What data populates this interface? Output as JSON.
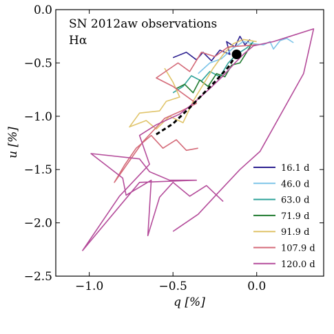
{
  "chart_data": {
    "type": "line",
    "title": "SN 2012aw observations",
    "subtitle": "Hα",
    "xlabel": "q [%]",
    "ylabel": "u [%]",
    "xlim": [
      -1.2,
      0.4
    ],
    "ylim": [
      -2.5,
      0.0
    ],
    "xticks": [
      -1.0,
      -0.5,
      0.0
    ],
    "xtick_labels": [
      "−1.0",
      "−0.5",
      "0.0"
    ],
    "yticks": [
      0.0,
      -0.5,
      -1.0,
      -1.5,
      -2.0,
      -2.5
    ],
    "ytick_labels": [
      "0.0",
      "−0.5",
      "−1.0",
      "−1.5",
      "−2.0",
      "−2.5"
    ],
    "grid": false,
    "legend_position": "lower-right",
    "series": [
      {
        "name": "16.1 d",
        "color": "#2b1f8f",
        "points": [
          [
            -0.5,
            -0.45
          ],
          [
            -0.42,
            -0.4
          ],
          [
            -0.36,
            -0.47
          ],
          [
            -0.32,
            -0.4
          ],
          [
            -0.27,
            -0.48
          ],
          [
            -0.22,
            -0.38
          ],
          [
            -0.16,
            -0.42
          ],
          [
            -0.18,
            -0.3
          ],
          [
            -0.13,
            -0.35
          ],
          [
            -0.1,
            -0.25
          ],
          [
            -0.07,
            -0.33
          ],
          [
            -0.04,
            -0.28
          ]
        ]
      },
      {
        "name": "46.0 d",
        "color": "#7cc4e8",
        "points": [
          [
            -0.35,
            -0.6
          ],
          [
            -0.28,
            -0.5
          ],
          [
            -0.21,
            -0.46
          ],
          [
            -0.14,
            -0.36
          ],
          [
            -0.08,
            -0.3
          ],
          [
            -0.02,
            -0.32
          ],
          [
            0.04,
            -0.33
          ],
          [
            0.08,
            -0.3
          ],
          [
            0.1,
            -0.37
          ],
          [
            0.14,
            -0.29
          ],
          [
            0.18,
            -0.27
          ],
          [
            0.22,
            -0.31
          ]
        ]
      },
      {
        "name": "63.0 d",
        "color": "#2fa39a",
        "points": [
          [
            -0.5,
            -0.78
          ],
          [
            -0.44,
            -0.72
          ],
          [
            -0.39,
            -0.62
          ],
          [
            -0.33,
            -0.67
          ],
          [
            -0.28,
            -0.58
          ],
          [
            -0.22,
            -0.63
          ],
          [
            -0.17,
            -0.5
          ],
          [
            -0.12,
            -0.42
          ],
          [
            -0.06,
            -0.36
          ],
          [
            -0.02,
            -0.3
          ]
        ]
      },
      {
        "name": "71.9 d",
        "color": "#1f7a2f",
        "points": [
          [
            -0.48,
            -0.74
          ],
          [
            -0.43,
            -0.7
          ],
          [
            -0.38,
            -0.78
          ],
          [
            -0.34,
            -0.66
          ],
          [
            -0.29,
            -0.72
          ],
          [
            -0.24,
            -0.6
          ],
          [
            -0.19,
            -0.63
          ],
          [
            -0.15,
            -0.52
          ],
          [
            -0.1,
            -0.5
          ],
          [
            -0.06,
            -0.4
          ],
          [
            -0.03,
            -0.32
          ]
        ]
      },
      {
        "name": "91.9 d",
        "color": "#e0c46a",
        "points": [
          [
            -0.55,
            -0.55
          ],
          [
            -0.5,
            -0.68
          ],
          [
            -0.46,
            -0.82
          ],
          [
            -0.54,
            -0.86
          ],
          [
            -0.58,
            -0.95
          ],
          [
            -0.7,
            -0.97
          ],
          [
            -0.76,
            -1.1
          ],
          [
            -0.66,
            -1.04
          ],
          [
            -0.6,
            -1.12
          ],
          [
            -0.52,
            -1.0
          ],
          [
            -0.44,
            -1.06
          ],
          [
            -0.38,
            -0.86
          ],
          [
            -0.33,
            -0.73
          ],
          [
            -0.26,
            -0.55
          ],
          [
            -0.2,
            -0.42
          ],
          [
            -0.14,
            -0.32
          ],
          [
            -0.08,
            -0.28
          ],
          [
            0.0,
            -0.3
          ]
        ]
      },
      {
        "name": "107.9 d",
        "color": "#d46a78",
        "points": [
          [
            -0.35,
            -1.3
          ],
          [
            -0.42,
            -1.32
          ],
          [
            -0.48,
            -1.22
          ],
          [
            -0.56,
            -1.3
          ],
          [
            -0.63,
            -1.18
          ],
          [
            -0.72,
            -1.3
          ],
          [
            -0.79,
            -1.46
          ],
          [
            -0.85,
            -1.62
          ],
          [
            -0.68,
            -1.24
          ],
          [
            -0.55,
            -1.02
          ],
          [
            -0.45,
            -0.95
          ],
          [
            -0.36,
            -0.88
          ],
          [
            -0.5,
            -0.72
          ],
          [
            -0.6,
            -0.64
          ],
          [
            -0.47,
            -0.5
          ],
          [
            -0.4,
            -0.58
          ],
          [
            -0.33,
            -0.4
          ],
          [
            -0.25,
            -0.44
          ],
          [
            -0.17,
            -0.35
          ],
          [
            -0.08,
            -0.34
          ],
          [
            0.0,
            -0.33
          ]
        ]
      },
      {
        "name": "120.0 d",
        "color": "#b44b9a",
        "points": [
          [
            -0.2,
            -1.8
          ],
          [
            -0.3,
            -1.65
          ],
          [
            -0.4,
            -1.75
          ],
          [
            -0.5,
            -1.62
          ],
          [
            -0.58,
            -1.76
          ],
          [
            -0.65,
            -2.12
          ],
          [
            -0.63,
            -1.6
          ],
          [
            -0.78,
            -1.74
          ],
          [
            -0.8,
            -1.58
          ],
          [
            -0.99,
            -1.35
          ],
          [
            -0.7,
            -1.4
          ],
          [
            -0.64,
            -1.52
          ],
          [
            -0.52,
            -1.6
          ],
          [
            -0.36,
            -1.6
          ],
          [
            -0.7,
            -1.62
          ],
          [
            -1.04,
            -2.26
          ],
          [
            -0.82,
            -1.75
          ],
          [
            -0.64,
            -1.45
          ],
          [
            -0.7,
            -1.18
          ],
          [
            -0.6,
            -1.08
          ],
          [
            -0.46,
            -0.98
          ],
          [
            -0.38,
            -0.88
          ],
          [
            -0.28,
            -0.74
          ],
          [
            -0.2,
            -0.62
          ],
          [
            -0.13,
            -0.5
          ],
          [
            -0.08,
            -0.42
          ],
          [
            -0.02,
            -0.34
          ],
          [
            0.1,
            -0.3
          ],
          [
            0.2,
            -0.25
          ],
          [
            0.34,
            -0.18
          ],
          [
            0.28,
            -0.6
          ],
          [
            0.02,
            -1.33
          ],
          [
            -0.1,
            -1.5
          ],
          [
            -0.22,
            -1.7
          ],
          [
            -0.35,
            -1.92
          ],
          [
            -0.5,
            -2.08
          ]
        ]
      },
      {
        "name": "",
        "color": "#000000",
        "style": "dashed",
        "points": [
          [
            -0.6,
            -1.17
          ],
          [
            -0.5,
            -1.07
          ],
          [
            -0.4,
            -0.92
          ],
          [
            -0.32,
            -0.79
          ],
          [
            -0.24,
            -0.66
          ],
          [
            -0.17,
            -0.54
          ],
          [
            -0.12,
            -0.42
          ]
        ]
      }
    ],
    "marker": {
      "x": -0.12,
      "y": -0.42,
      "color": "#000000"
    }
  }
}
